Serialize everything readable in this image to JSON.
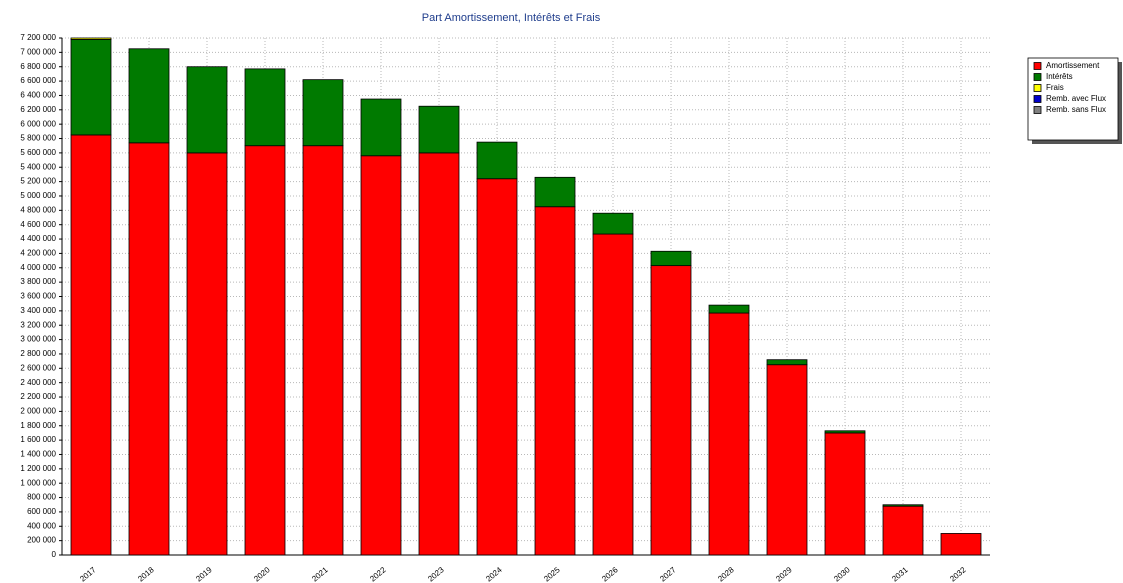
{
  "chart_data": {
    "type": "stacked-bar",
    "title": "Part Amortissement, Intérêts et Frais",
    "categories": [
      "2017",
      "2018",
      "2019",
      "2020",
      "2021",
      "2022",
      "2023",
      "2024",
      "2025",
      "2026",
      "2027",
      "2028",
      "2029",
      "2030",
      "2031",
      "2032"
    ],
    "series": [
      {
        "name": "Amortissement",
        "color": "#ff0000",
        "values": [
          5850000,
          5740000,
          5600000,
          5700000,
          5700000,
          5560000,
          5600000,
          5240000,
          4850000,
          4470000,
          4030000,
          3370000,
          2650000,
          1700000,
          680000,
          300000
        ]
      },
      {
        "name": "Intérêts",
        "color": "#007a00",
        "values": [
          1330000,
          1310000,
          1200000,
          1070000,
          920000,
          790000,
          650000,
          510000,
          410000,
          290000,
          200000,
          110000,
          70000,
          30000,
          20000,
          0
        ]
      },
      {
        "name": "Frais",
        "color": "#ffff00",
        "values": [
          20000,
          0,
          0,
          0,
          0,
          0,
          0,
          0,
          0,
          0,
          0,
          0,
          0,
          0,
          0,
          0
        ]
      },
      {
        "name": "Remb. avec Flux",
        "color": "#0000cc",
        "values": [
          0,
          0,
          0,
          0,
          0,
          0,
          0,
          0,
          0,
          0,
          0,
          0,
          0,
          0,
          0,
          0
        ]
      },
      {
        "name": "Remb. sans Flux",
        "color": "#808080",
        "values": [
          0,
          0,
          0,
          0,
          0,
          0,
          0,
          0,
          0,
          0,
          0,
          0,
          0,
          0,
          0,
          0
        ]
      }
    ],
    "ylim": [
      0,
      7200000
    ],
    "yticks": [
      0,
      {
        "value": 200000,
        "label": "200 000"
      },
      {
        "value": 400000,
        "label": "400 000"
      },
      {
        "value": 600000,
        "label": "600 000"
      },
      {
        "value": 800000,
        "label": "800 000"
      },
      {
        "value": 1000000,
        "label": "1 000 000"
      },
      {
        "value": 1200000,
        "label": "1 200 000"
      },
      {
        "value": 1400000,
        "label": "1 400 000"
      },
      {
        "value": 1600000,
        "label": "1 600 000"
      },
      {
        "value": 1800000,
        "label": "1 800 000"
      },
      {
        "value": 2000000,
        "label": "2 000 000"
      },
      {
        "value": 2200000,
        "label": "2 200 000"
      },
      {
        "value": 2400000,
        "label": "2 400 000"
      },
      {
        "value": 2600000,
        "label": "2 600 000"
      },
      {
        "value": 2800000,
        "label": "2 800 000"
      },
      {
        "value": 3000000,
        "label": "3 000 000"
      },
      {
        "value": 3200000,
        "label": "3 200 000"
      },
      {
        "value": 3400000,
        "label": "3 400 000"
      },
      {
        "value": 3600000,
        "label": "3 600 000"
      },
      {
        "value": 3800000,
        "label": "3 800 000"
      },
      {
        "value": 4000000,
        "label": "4 000 000"
      },
      {
        "value": 4200000,
        "label": "4 200 000"
      },
      {
        "value": 4400000,
        "label": "4 400 000"
      },
      {
        "value": 4600000,
        "label": "4 600 000"
      },
      {
        "value": 4800000,
        "label": "4 800 000"
      },
      {
        "value": 5000000,
        "label": "5 000 000"
      },
      {
        "value": 5200000,
        "label": "5 200 000"
      },
      {
        "value": 5400000,
        "label": "5 400 000"
      },
      {
        "value": 5600000,
        "label": "5 600 000"
      },
      {
        "value": 5800000,
        "label": "5 800 000"
      },
      {
        "value": 6000000,
        "label": "6 000 000"
      },
      {
        "value": 6200000,
        "label": "6 200 000"
      },
      {
        "value": 6400000,
        "label": "6 400 000"
      },
      {
        "value": 6600000,
        "label": "6 600 000"
      },
      {
        "value": 6800000,
        "label": "6 800 000"
      },
      {
        "value": 7000000,
        "label": "7 000 000"
      },
      {
        "value": 7200000,
        "label": "7 200 000"
      }
    ],
    "grid": true,
    "legend": "top-right"
  }
}
